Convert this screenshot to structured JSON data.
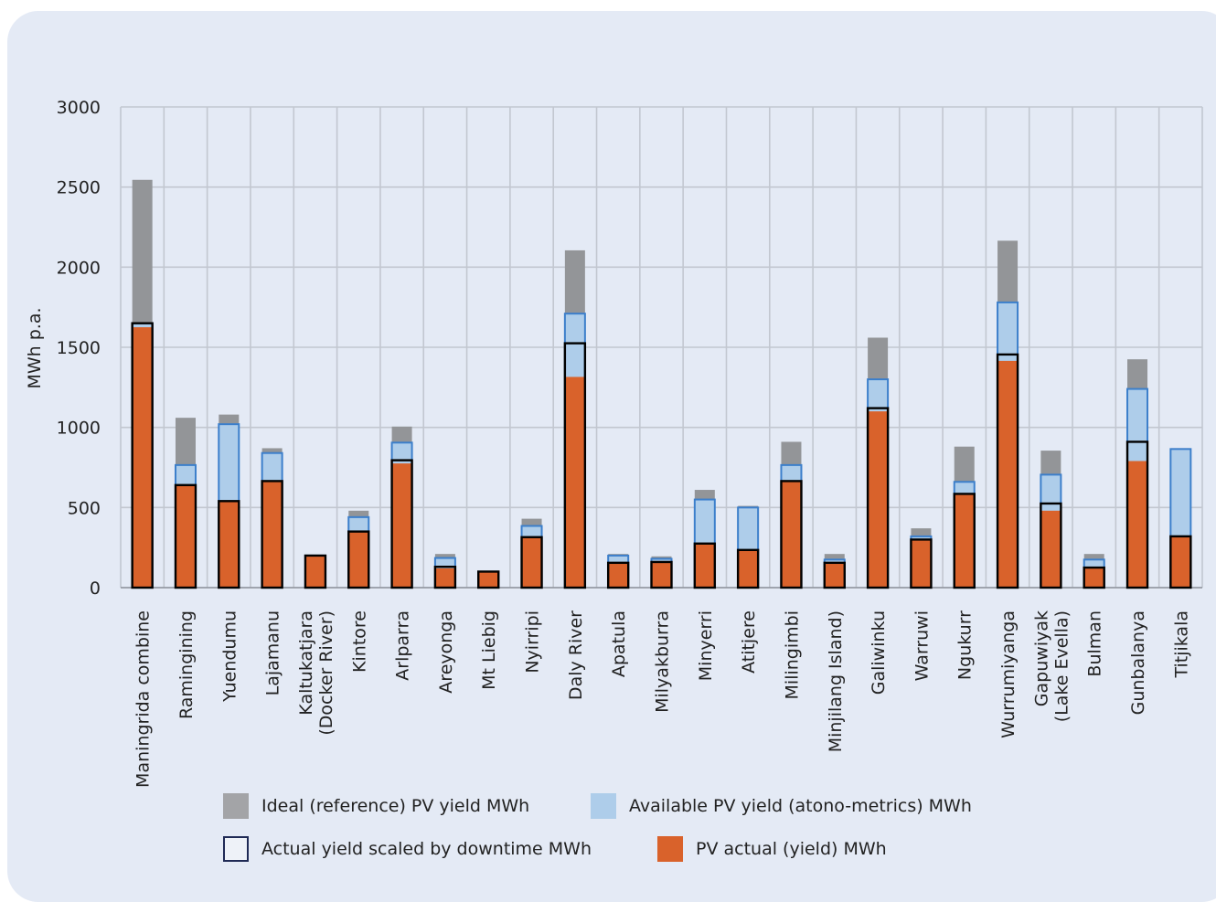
{
  "chart_data": {
    "type": "bar",
    "title": "",
    "xlabel": "",
    "ylabel": "MWh p.a.",
    "ylim": [
      0,
      3000
    ],
    "yticks": [
      0,
      500,
      1000,
      1500,
      2000,
      2500,
      3000
    ],
    "grid": true,
    "legend_position": "bottom",
    "categories": [
      [
        "Maningrida combine"
      ],
      [
        "Ramingining"
      ],
      [
        "Yuendumu"
      ],
      [
        "Lajamanu"
      ],
      [
        "Kaltukatjara",
        "(Docker River)"
      ],
      [
        "Kintore"
      ],
      [
        "Arlparra"
      ],
      [
        "Areyonga"
      ],
      [
        "Mt Liebig"
      ],
      [
        "Nyirripi"
      ],
      [
        "Daly River"
      ],
      [
        "Apatula"
      ],
      [
        "Milyakburra"
      ],
      [
        "Minyerri"
      ],
      [
        "Atitjere"
      ],
      [
        "Milingimbi"
      ],
      [
        "Minjilang Island)"
      ],
      [
        "Galiwinku"
      ],
      [
        "Warruwi"
      ],
      [
        "Ngukurr"
      ],
      [
        "Wurrumiyanga"
      ],
      [
        "Gapuwiyak",
        "(Lake Evella)"
      ],
      [
        "Bulman"
      ],
      [
        "Gunbalanya"
      ],
      [
        "Titjikala"
      ]
    ],
    "series": [
      {
        "name": "Ideal (reference) PV yield MWh",
        "color": "#939598",
        "values": [
          2545,
          1060,
          1080,
          870,
          200,
          480,
          1005,
          210,
          100,
          430,
          2105,
          210,
          195,
          610,
          510,
          910,
          210,
          1560,
          370,
          880,
          2165,
          855,
          210,
          1425,
          870
        ]
      },
      {
        "name": "Available PV yield (atono-metrics) MWh",
        "color": "#aecdea",
        "values": [
          1650,
          765,
          1020,
          840,
          200,
          440,
          905,
          185,
          100,
          385,
          1710,
          200,
          180,
          550,
          500,
          765,
          175,
          1300,
          320,
          660,
          1780,
          705,
          175,
          1240,
          865
        ]
      },
      {
        "name": "Actual yield scaled by downtime MWh",
        "color": "#000000",
        "values": [
          1650,
          640,
          540,
          665,
          200,
          350,
          795,
          130,
          100,
          315,
          1525,
          155,
          160,
          275,
          235,
          665,
          155,
          1120,
          300,
          585,
          1455,
          525,
          125,
          910,
          320
        ]
      },
      {
        "name": "PV actual (yield) MWh",
        "color": "#d9622b",
        "values": [
          1625,
          640,
          540,
          665,
          200,
          350,
          775,
          120,
          95,
          315,
          1315,
          155,
          160,
          275,
          235,
          665,
          155,
          1100,
          300,
          585,
          1415,
          480,
          125,
          790,
          320
        ]
      }
    ]
  }
}
